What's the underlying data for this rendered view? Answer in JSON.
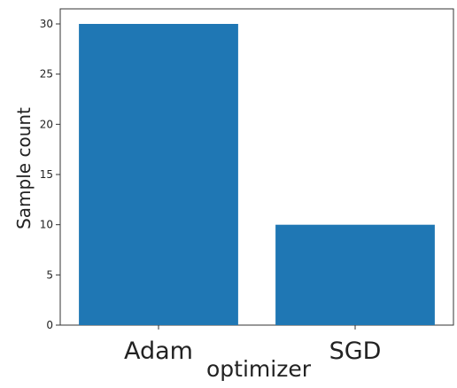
{
  "chart_data": {
    "type": "bar",
    "categories": [
      "Adam",
      "SGD"
    ],
    "values": [
      30,
      10
    ],
    "title": "",
    "xlabel": "optimizer",
    "ylabel": "Sample count",
    "ylim": [
      0,
      31.5
    ],
    "yticks": [
      0,
      5,
      10,
      15,
      20,
      25,
      30
    ],
    "grid": false,
    "legend": "none",
    "bar_color": "#1f77b4"
  }
}
